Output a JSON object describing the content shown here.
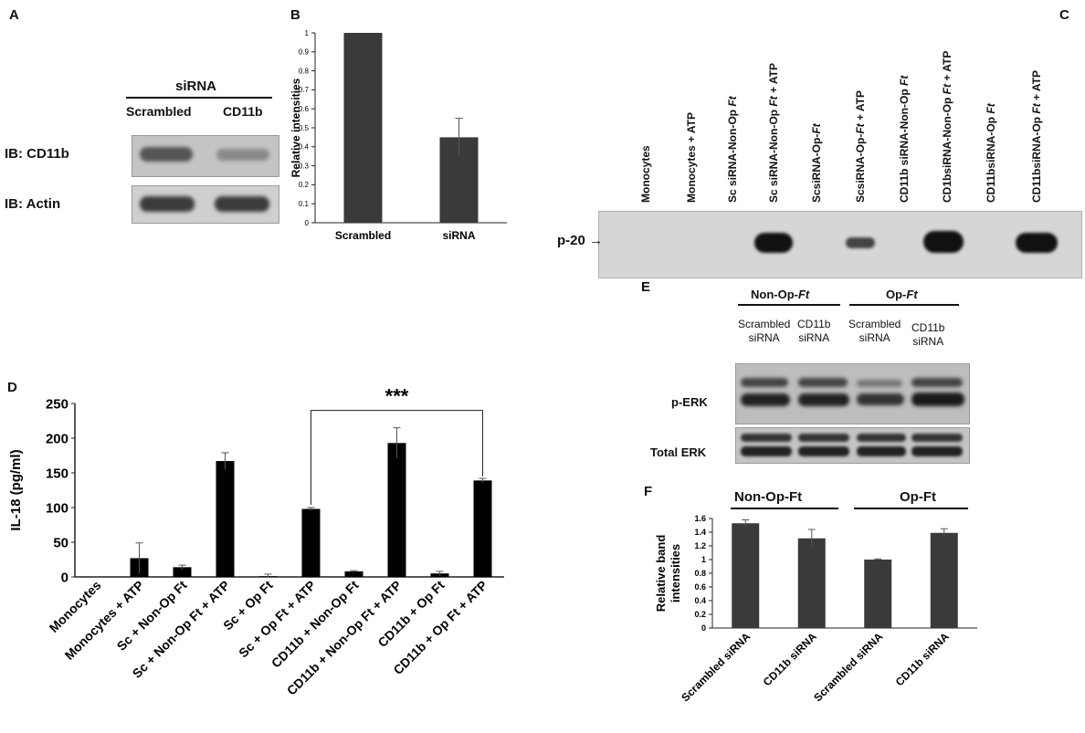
{
  "panels": {
    "a": {
      "letter": "A",
      "header": "siRNA",
      "lanes": [
        "Scrambled",
        "CD11b"
      ],
      "rows": [
        "IB: CD11b",
        "IB: Actin"
      ]
    },
    "b": {
      "letter": "B",
      "chart_data": {
        "type": "bar",
        "categories": [
          "Scrambled",
          "siRNA"
        ],
        "values": [
          1.0,
          0.45
        ],
        "errors": [
          0,
          0.1
        ],
        "ylabel": "Relative intensities",
        "ylim": [
          0,
          1
        ],
        "yticks": [
          "0",
          "0.1",
          "0.2",
          "0.3",
          "0.4",
          "0.5",
          "0.6",
          "0.7",
          "0.8",
          "0.9",
          "1"
        ],
        "bar_color": "#3a3a3a",
        "grid": false
      }
    },
    "c": {
      "letter": "C",
      "band_label": "p-20",
      "arrow": "→",
      "lanes": [
        {
          "pre": "Monocytes",
          "ital": "",
          "post": ""
        },
        {
          "pre": "Monocytes + ATP",
          "ital": "",
          "post": ""
        },
        {
          "pre": "Sc siRNA-Non-Op ",
          "ital": "Ft",
          "post": ""
        },
        {
          "pre": "Sc siRNA-Non-Op ",
          "ital": "Ft",
          "post": " + ATP"
        },
        {
          "pre": "ScsiRNA-Op-",
          "ital": "Ft",
          "post": ""
        },
        {
          "pre": "ScsiRNA-Op-",
          "ital": "Ft",
          "post": " + ATP"
        },
        {
          "pre": "CD11b siRNA-Non-Op ",
          "ital": "Ft",
          "post": ""
        },
        {
          "pre": "CD1bsiRNA-Non-Op ",
          "ital": "Ft",
          "post": " + ATP"
        },
        {
          "pre": "CD11bsiRNA-Op ",
          "ital": "Ft",
          "post": ""
        },
        {
          "pre": "CD11bsiRNA-Op ",
          "ital": "Ft",
          "post": " + ATP"
        }
      ]
    },
    "d": {
      "letter": "D",
      "significance": "***",
      "chart_data": {
        "type": "bar",
        "categories": [
          "Monocytes",
          "Monocytes + ATP",
          "Sc + Non-Op Ft",
          "Sc + Non-Op Ft + ATP",
          "Sc + Op Ft",
          "Sc + Op Ft + ATP",
          "CD11b + Non-Op Ft",
          "CD11b + Non-Op Ft + ATP",
          "CD11b + Op Ft",
          "CD11b + Op Ft + ATP"
        ],
        "values": [
          0,
          27,
          14,
          167,
          1,
          98,
          8,
          193,
          5,
          139
        ],
        "errors": [
          0,
          22,
          3,
          12,
          3,
          2,
          1,
          22,
          3,
          3
        ],
        "ylabel": "IL-18 (pg/ml)",
        "ylim": [
          0,
          250
        ],
        "yticks": [
          "0",
          "50",
          "100",
          "150",
          "200",
          "250"
        ],
        "bar_color": "#000000",
        "grid": false
      }
    },
    "e": {
      "letter": "E",
      "groups": [
        {
          "pre": "Non-Op-",
          "ital": "Ft"
        },
        {
          "pre": "Op-",
          "ital": "Ft"
        }
      ],
      "lanes": [
        [
          "Scrambled",
          "siRNA"
        ],
        [
          "CD11b",
          "siRNA"
        ],
        [
          "Scrambled",
          "siRNA"
        ],
        [
          "CD11b",
          "siRNA"
        ]
      ],
      "rows": [
        "p-ERK",
        "Total ERK"
      ]
    },
    "f": {
      "letter": "F",
      "groups": [
        "Non-Op-Ft",
        "Op-Ft"
      ],
      "chart_data": {
        "type": "bar",
        "categories": [
          "Scrambled siRNA",
          "CD11b siRNA",
          "Scrambled siRNA",
          "CD11b siRNA"
        ],
        "values": [
          1.53,
          1.31,
          1.0,
          1.39
        ],
        "errors": [
          0.05,
          0.13,
          0.01,
          0.06
        ],
        "ylabel_lines": [
          "Relative band",
          "intensities"
        ],
        "ylim": [
          0,
          1.6
        ],
        "yticks": [
          "0",
          "0.2",
          "0.4",
          "0.6",
          "0.8",
          "1",
          "1.2",
          "1.4",
          "1.6"
        ],
        "bar_color": "#3a3a3a",
        "grid": false
      }
    }
  }
}
